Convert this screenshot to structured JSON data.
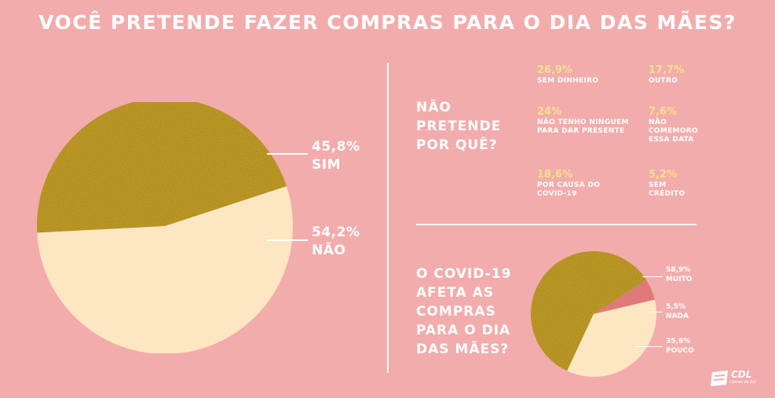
{
  "title": "VOCÊ PRETENDE FAZER COMPRAS PARA O DIA DAS MÃES?",
  "colors": {
    "background": "#f2acac",
    "gold": "#c7a22c",
    "cream": "#fde7c2",
    "red": "#e07a7a",
    "value_yellow": "#f7e08c",
    "text": "#ffffff"
  },
  "chart_data": [
    {
      "type": "pie",
      "title": "VOCÊ PRETENDE FAZER COMPRAS PARA O DIA DAS MÃES?",
      "slices": [
        {
          "label": "SIM",
          "value": 45.8,
          "value_text": "45,8%",
          "color": "#c7a22c"
        },
        {
          "label": "NÃO",
          "value": 54.2,
          "value_text": "54,2%",
          "color": "#fde7c2"
        }
      ]
    },
    {
      "type": "table",
      "title": "NÃO PRETENDE POR QUÊ?",
      "rows": [
        {
          "value": 26.9,
          "value_text": "26,9%",
          "label": "SEM DINHEIRO"
        },
        {
          "value": 17.7,
          "value_text": "17,7%",
          "label": "OUTRO"
        },
        {
          "value": 24,
          "value_text": "24%",
          "label": "NÃO TENHO NINGUEM PARA DAR PRESENTE"
        },
        {
          "value": 7.6,
          "value_text": "7,6%",
          "label": "NÃO COMEMORO ESSA DATA"
        },
        {
          "value": 18.6,
          "value_text": "18,6%",
          "label": "POR CAUSA DO COVID-19"
        },
        {
          "value": 5.2,
          "value_text": "5,2%",
          "label": "SEM CRÉDITO"
        }
      ]
    },
    {
      "type": "pie",
      "title": "O COVID-19 AFETA AS COMPRAS PARA O DIA DAS MÃES?",
      "slices": [
        {
          "label": "MUITO",
          "value": 58.9,
          "value_text": "58,9%",
          "color": "#c7a22c"
        },
        {
          "label": "NADA",
          "value": 5.5,
          "value_text": "5,5%",
          "color": "#e07a7a"
        },
        {
          "label": "POUCO",
          "value": 35.6,
          "value_text": "35,6%",
          "color": "#fde7c2"
        }
      ]
    }
  ],
  "why_question": [
    "NÃO",
    "PRETENDE",
    "POR QUÊ?"
  ],
  "covid_question": [
    "O COVID-19",
    "AFETA AS",
    "COMPRAS",
    "PARA O DIA",
    "DAS MÃES?"
  ],
  "logo": {
    "name": "CDL",
    "subtitle": "Caxias do Sul"
  }
}
